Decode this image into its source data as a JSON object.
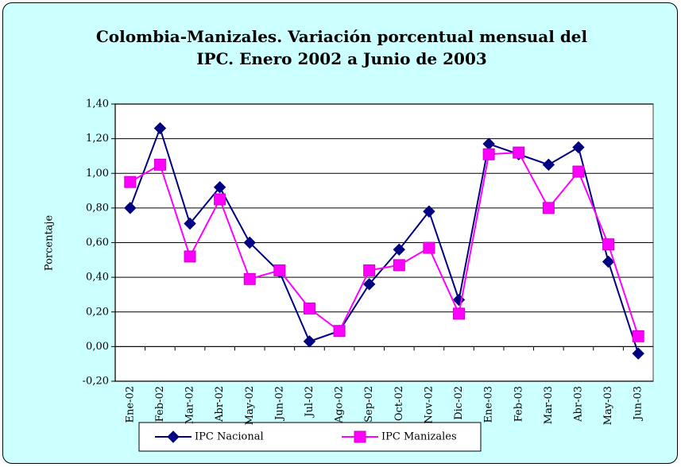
{
  "chart_data": {
    "type": "line",
    "title": "Colombia-Manizales. Variación porcentual mensual del IPC. Enero 2002 a Junio de 2003",
    "y_label": "Porcentaje",
    "categories": [
      "Ene-02",
      "Feb-02",
      "Mar-02",
      "Abr-02",
      "May-02",
      "Jun-02",
      "Jul-02",
      "Ago-02",
      "Sep-02",
      "Oct-02",
      "Nov-02",
      "Dic-02",
      "Ene-03",
      "Feb-03",
      "Mar-03",
      "Abr-03",
      "May-03",
      "Jun-03"
    ],
    "series": [
      {
        "name": "IPC Nacional",
        "color": "#000080",
        "marker": "diamond",
        "values": [
          0.8,
          1.26,
          0.71,
          0.92,
          0.6,
          0.43,
          0.03,
          0.09,
          0.36,
          0.56,
          0.78,
          0.27,
          1.17,
          1.11,
          1.05,
          1.15,
          0.49,
          -0.04
        ]
      },
      {
        "name": "IPC Manizales",
        "color": "#ff00ff",
        "marker": "square",
        "values": [
          0.95,
          1.05,
          0.52,
          0.85,
          0.39,
          0.44,
          0.22,
          0.09,
          0.44,
          0.47,
          0.57,
          0.19,
          1.11,
          1.12,
          0.8,
          1.01,
          0.59,
          0.06
        ]
      }
    ],
    "ylim": [
      -0.2,
      1.4
    ],
    "yticks": [
      {
        "value": -0.2,
        "label": "-0,20"
      },
      {
        "value": 0,
        "label": "0,00"
      },
      {
        "value": 0.2,
        "label": "0,20"
      },
      {
        "value": 0.4,
        "label": "0,40"
      },
      {
        "value": 0.6,
        "label": "0,60"
      },
      {
        "value": 0.8,
        "label": "0,80"
      },
      {
        "value": 1.0,
        "label": "1,00"
      },
      {
        "value": 1.2,
        "label": "1,20"
      },
      {
        "value": 1.4,
        "label": "1,40"
      }
    ],
    "grid": true,
    "legend": "bottom"
  }
}
